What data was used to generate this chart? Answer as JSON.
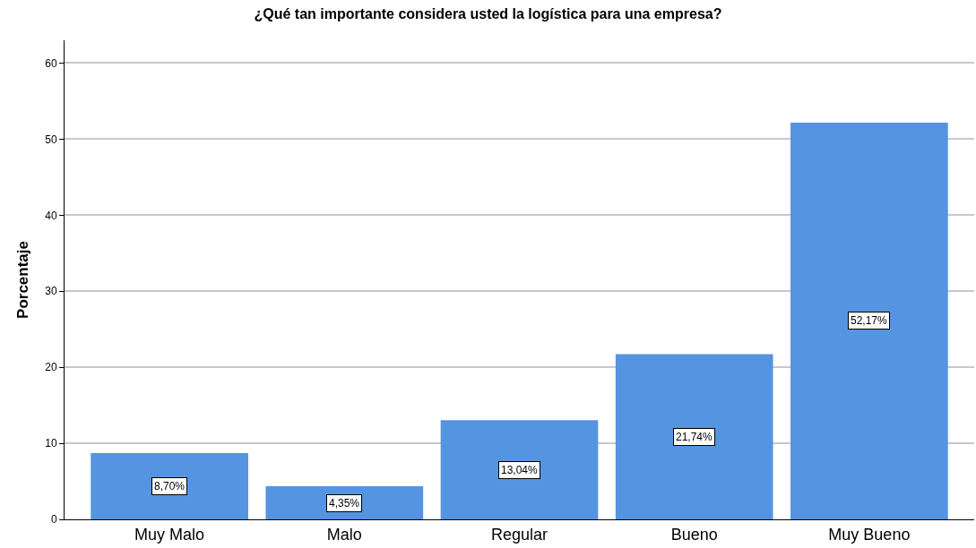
{
  "chart_data": {
    "type": "bar",
    "title": "¿Qué tan importante considera usted la logística para una empresa?",
    "ylabel": "Porcentaje",
    "categories": [
      "Muy Malo",
      "Malo",
      "Regular",
      "Bueno",
      "Muy Bueno"
    ],
    "values": [
      8.7,
      4.35,
      13.04,
      21.74,
      52.17
    ],
    "value_labels": [
      "8,70%",
      "4,35%",
      "13,04%",
      "21,74%",
      "52,17%"
    ],
    "color": "#5594e0",
    "ylim": [
      0,
      63
    ],
    "yticks": [
      0,
      10,
      20,
      30,
      40,
      50,
      60
    ],
    "grid": "y"
  }
}
